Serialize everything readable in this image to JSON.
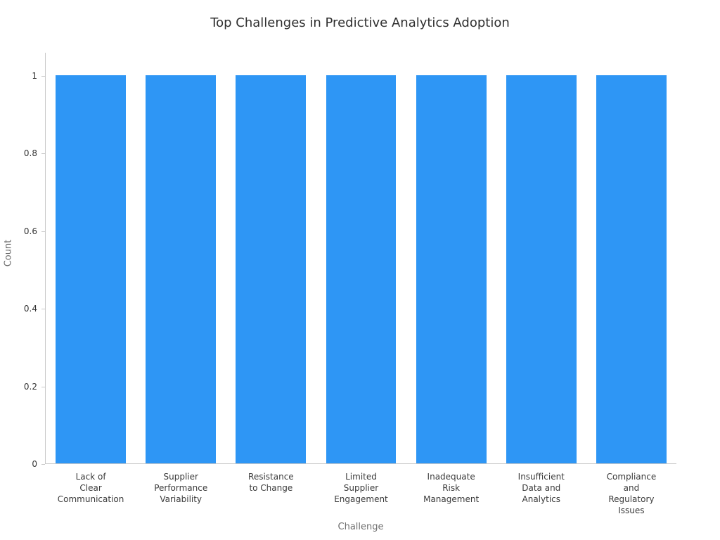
{
  "chart_data": {
    "type": "bar",
    "title": "Top Challenges in Predictive Analytics Adoption",
    "xlabel": "Challenge",
    "ylabel": "Count",
    "categories": [
      "Lack of\nClear\nCommunication",
      "Supplier\nPerformance\nVariability",
      "Resistance\nto Change",
      "Limited\nSupplier\nEngagement",
      "Inadequate\nRisk\nManagement",
      "Insufficient\nData and\nAnalytics",
      "Compliance\nand\nRegulatory\nIssues"
    ],
    "values": [
      1,
      1,
      1,
      1,
      1,
      1,
      1
    ],
    "ylim": [
      0,
      1.06
    ],
    "yticks": [
      0,
      0.2,
      0.4,
      0.6,
      0.8,
      1
    ],
    "ytick_labels": [
      "0",
      "0.2",
      "0.4",
      "0.6",
      "0.8",
      "1"
    ],
    "bar_color": "#2E96F5",
    "axis_color": "#c9c9c9",
    "grid": false,
    "legend": false
  }
}
